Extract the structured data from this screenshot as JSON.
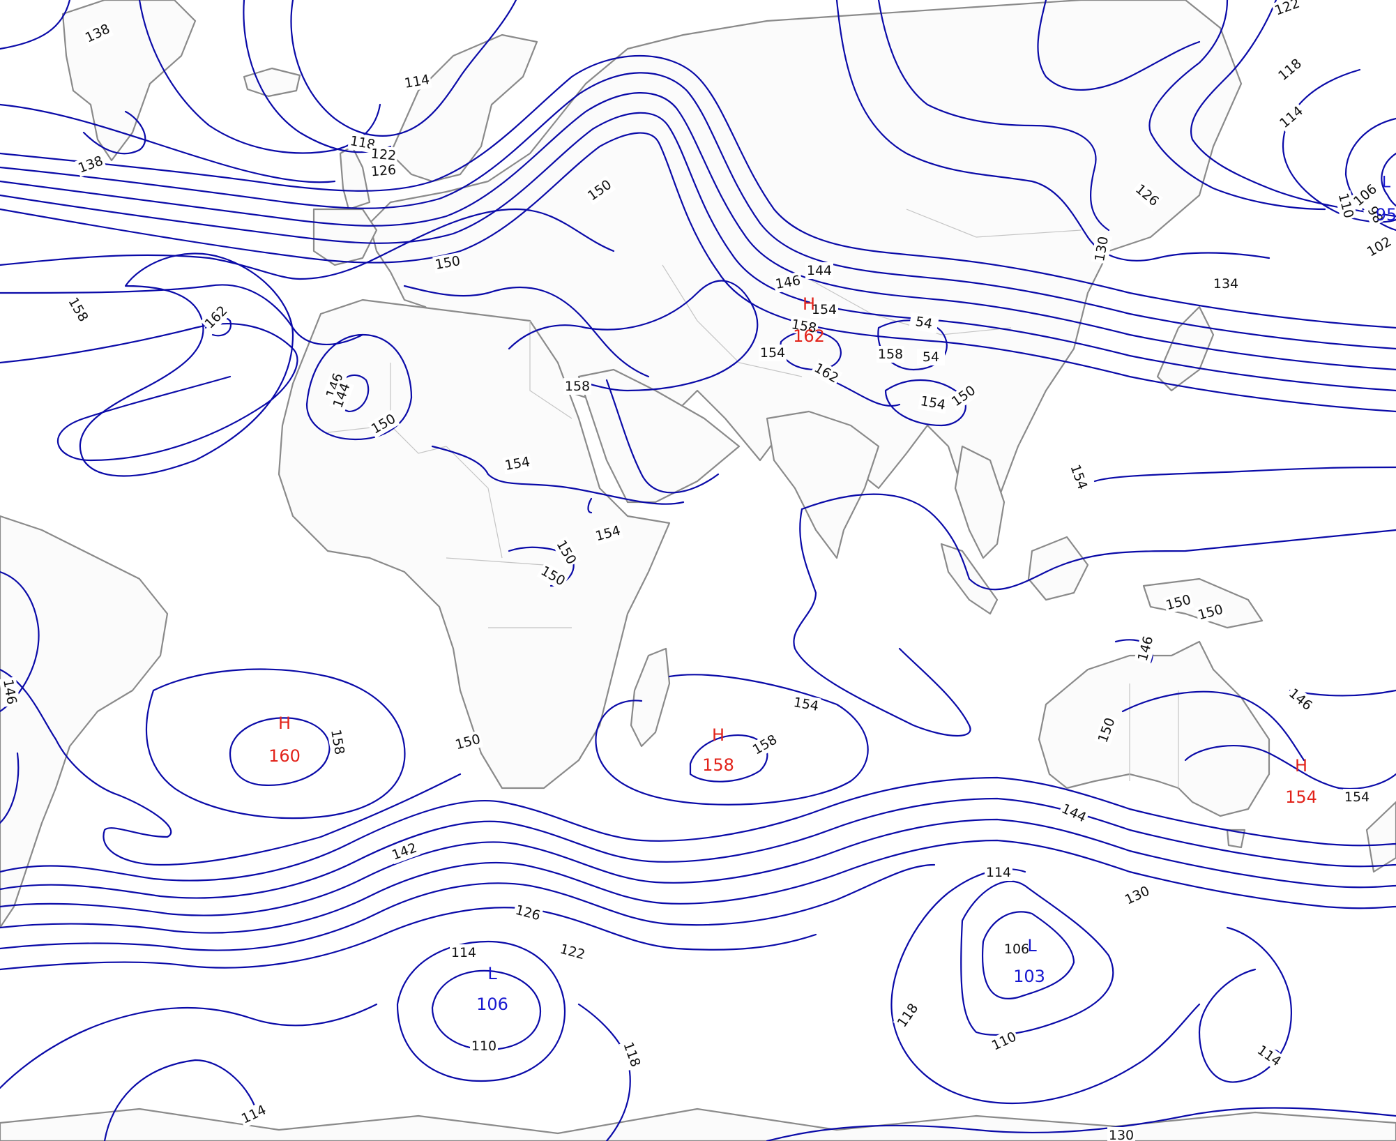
{
  "contour_labels": [
    "138",
    "138",
    "114",
    "118",
    "122",
    "126",
    "150",
    "150",
    "158",
    "162",
    "146",
    "144",
    "150",
    "158",
    "154",
    "154",
    "150",
    "150",
    "146",
    "144",
    "154",
    "158",
    "162",
    "154",
    "158",
    "54",
    "54",
    "154",
    "150",
    "154",
    "130",
    "126",
    "134",
    "122",
    "118",
    "114",
    "110",
    "106",
    "98",
    "102",
    "150",
    "150",
    "146",
    "150",
    "146",
    "154",
    "154",
    "158",
    "158",
    "150",
    "142",
    "144",
    "130",
    "126",
    "122",
    "114",
    "110",
    "118",
    "114",
    "106",
    "110",
    "118",
    "114",
    "114",
    "130",
    "146"
  ],
  "pressure_centers": [
    {
      "type": "H",
      "value": "160"
    },
    {
      "type": "H",
      "value": "158"
    },
    {
      "type": "H",
      "value": "154"
    },
    {
      "type": "H",
      "value": "162"
    },
    {
      "type": "L",
      "value": "106"
    },
    {
      "type": "L",
      "value": "103"
    },
    {
      "type": "L",
      "value": "95"
    }
  ],
  "colors": {
    "isobar": "#0a0aa8",
    "high": "#e2231a",
    "low": "#1818d0",
    "coast": "#8a8a8a",
    "border": "#c4c4c4"
  }
}
